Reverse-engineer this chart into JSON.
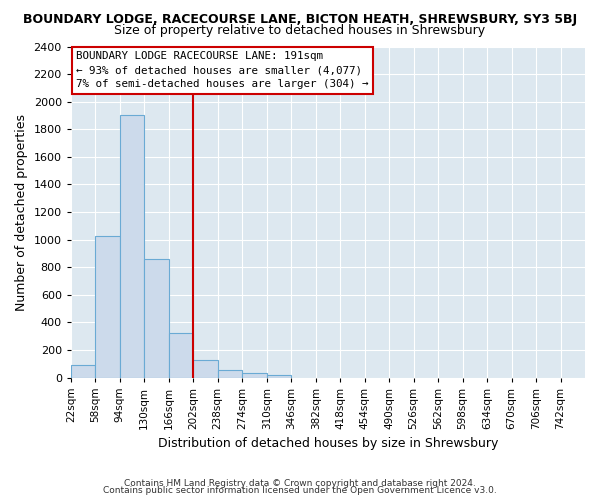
{
  "title": "BOUNDARY LODGE, RACECOURSE LANE, BICTON HEATH, SHREWSBURY, SY3 5BJ",
  "subtitle": "Size of property relative to detached houses in Shrewsbury",
  "xlabel": "Distribution of detached houses by size in Shrewsbury",
  "ylabel": "Number of detached properties",
  "footer_line1": "Contains HM Land Registry data © Crown copyright and database right 2024.",
  "footer_line2": "Contains public sector information licensed under the Open Government Licence v3.0.",
  "bin_labels": [
    "22sqm",
    "58sqm",
    "94sqm",
    "130sqm",
    "166sqm",
    "202sqm",
    "238sqm",
    "274sqm",
    "310sqm",
    "346sqm",
    "382sqm",
    "418sqm",
    "454sqm",
    "490sqm",
    "526sqm",
    "562sqm",
    "598sqm",
    "634sqm",
    "670sqm",
    "706sqm",
    "742sqm"
  ],
  "bin_values": [
    90,
    1025,
    1900,
    860,
    325,
    130,
    55,
    35,
    20,
    0,
    0,
    0,
    0,
    0,
    0,
    0,
    0,
    0,
    0,
    0,
    0
  ],
  "bar_color": "#ccdaeb",
  "bar_edge_color": "#6aaad4",
  "vline_x_index": 5,
  "vline_color": "#cc0000",
  "annotation_line1": "BOUNDARY LODGE RACECOURSE LANE: 191sqm",
  "annotation_line2": "← 93% of detached houses are smaller (4,077)",
  "annotation_line3": "7% of semi-detached houses are larger (304) →",
  "annotation_border_color": "#cc0000",
  "ylim": [
    0,
    2400
  ],
  "yticks": [
    0,
    200,
    400,
    600,
    800,
    1000,
    1200,
    1400,
    1600,
    1800,
    2000,
    2200,
    2400
  ],
  "fig_bg": "#ffffff",
  "plot_bg": "#dde8f0",
  "grid_color": "#ffffff",
  "title_fontsize": 9,
  "subtitle_fontsize": 9
}
